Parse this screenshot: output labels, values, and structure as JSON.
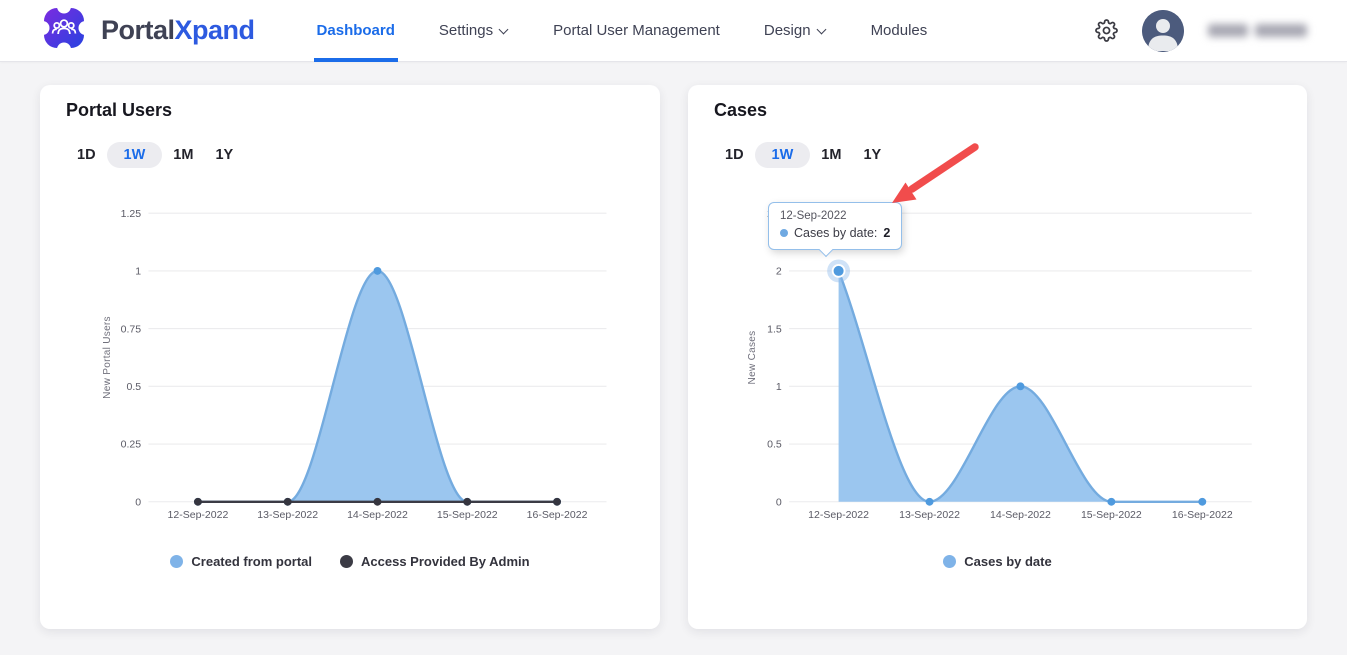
{
  "theme": {
    "accent": "#1b6ce9",
    "page_background": "#f4f4f6",
    "area_fill": "#9bc6ef",
    "area_line": "#74abdf",
    "marker_blue": "#4f9ade",
    "dark_series": "#3b3b45",
    "arrow_red": "#f14c4c",
    "grid_line": "#ececee"
  },
  "header": {
    "brand": {
      "primary": "Portal",
      "accent": "Xpand"
    },
    "nav": [
      {
        "label": "Dashboard",
        "active": true
      },
      {
        "label": "Settings",
        "dropdown": true
      },
      {
        "label": "Portal User Management"
      },
      {
        "label": "Design",
        "dropdown": true
      },
      {
        "label": "Modules"
      }
    ]
  },
  "cards": [
    {
      "title": "Portal Users",
      "ranges": [
        "1D",
        "1W",
        "1M",
        "1Y"
      ],
      "selected_range": "1W"
    },
    {
      "title": "Cases",
      "ranges": [
        "1D",
        "1W",
        "1M",
        "1Y"
      ],
      "selected_range": "1W"
    }
  ],
  "chart_data": [
    {
      "type": "area",
      "title": "Portal Users",
      "x": [
        "12-Sep-2022",
        "13-Sep-2022",
        "14-Sep-2022",
        "15-Sep-2022",
        "16-Sep-2022"
      ],
      "series": [
        {
          "name": "Created from portal",
          "values": [
            0,
            0,
            1,
            0,
            0
          ],
          "color": "#74abdf",
          "fill": "#9bc6ef",
          "marker": "#4f9ade"
        },
        {
          "name": "Access Provided By Admin",
          "values": [
            0,
            0,
            0,
            0,
            0
          ],
          "color": "#3b3b45",
          "marker": "#35353f"
        }
      ],
      "ylabel": "New Portal Users",
      "yticks": [
        0,
        0.25,
        0.5,
        0.75,
        1,
        1.25
      ],
      "ylim": [
        0,
        1.25
      ],
      "grid": true,
      "legend_position": "bottom"
    },
    {
      "type": "area",
      "title": "Cases",
      "x": [
        "12-Sep-2022",
        "13-Sep-2022",
        "14-Sep-2022",
        "15-Sep-2022",
        "16-Sep-2022"
      ],
      "series": [
        {
          "name": "Cases by date",
          "values": [
            2,
            0,
            1,
            0,
            0
          ],
          "color": "#74abdf",
          "fill": "#9bc6ef",
          "marker": "#4f9ade"
        }
      ],
      "ylabel": "New Cases",
      "yticks": [
        0,
        0.5,
        1,
        1.5,
        2,
        2.5
      ],
      "ylim": [
        0,
        2.5
      ],
      "grid": true,
      "legend_position": "bottom",
      "tooltip": {
        "title": "12-Sep-2022",
        "label": "Cases by date:",
        "value": "2",
        "point_index": 0
      }
    }
  ]
}
